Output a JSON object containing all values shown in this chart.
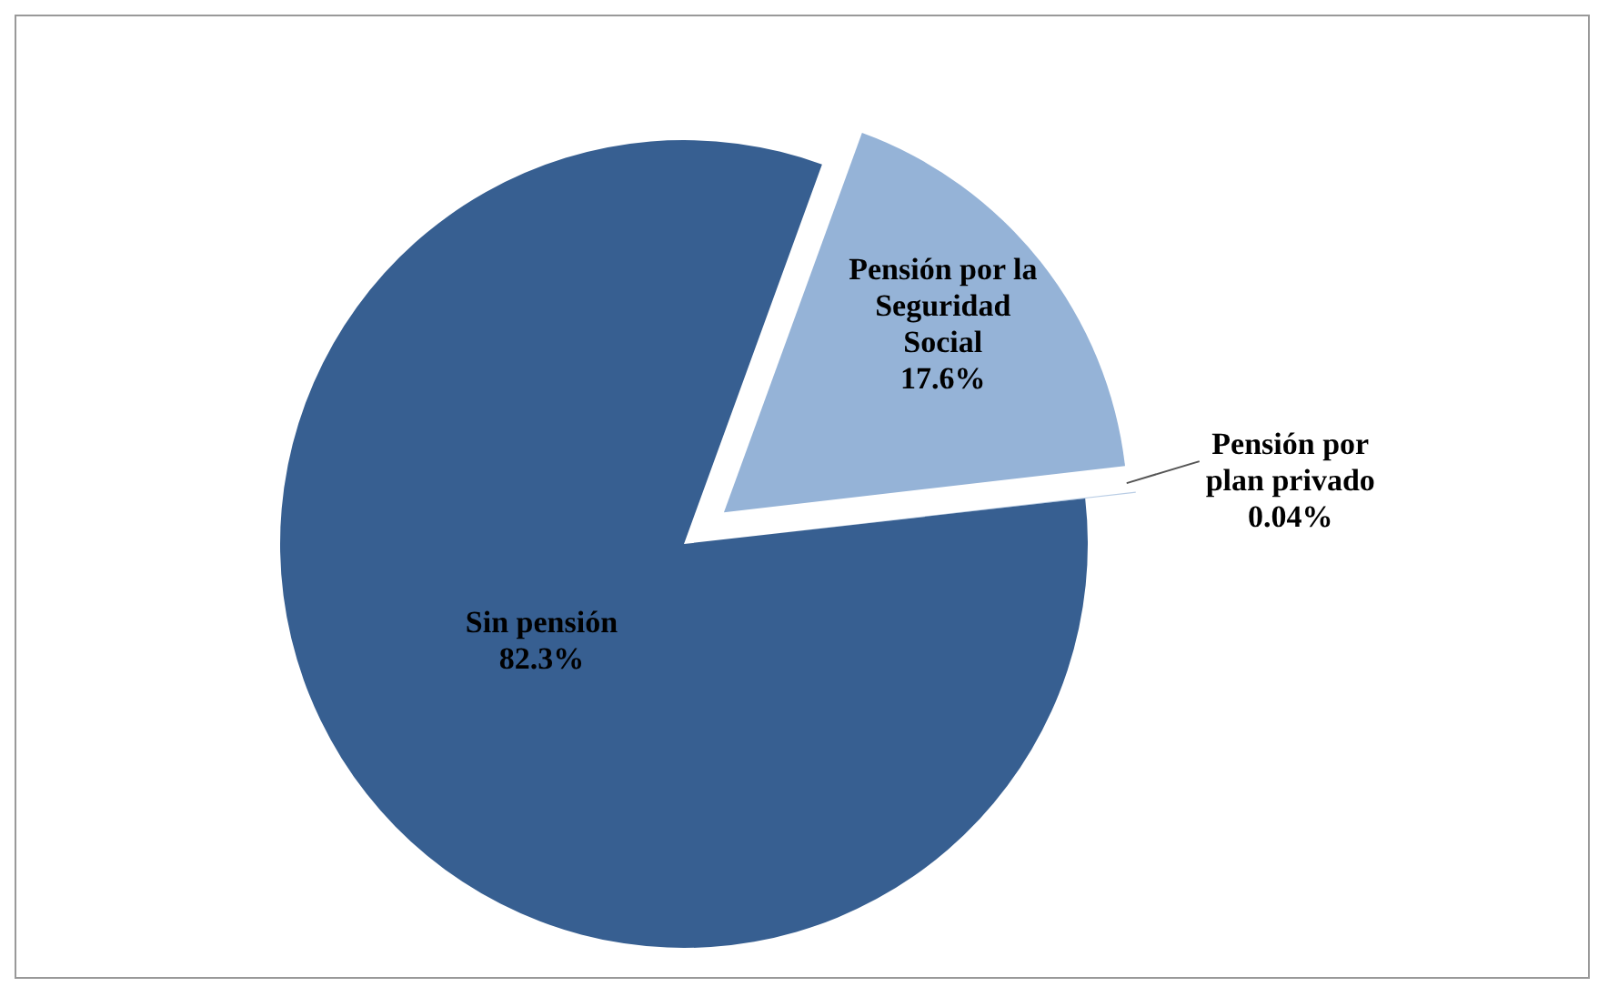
{
  "chart_data": {
    "type": "pie",
    "categories": [
      "Pensión por la Seguridad Social",
      "Pensión por plan privado",
      "Sin pensión"
    ],
    "values": [
      17.6,
      0.04,
      82.3
    ],
    "value_labels": [
      "17.6%",
      "0.04%",
      "82.3%"
    ],
    "colors": [
      "#95b3d7",
      "#b9cde5",
      "#375f91"
    ],
    "legend": false
  }
}
